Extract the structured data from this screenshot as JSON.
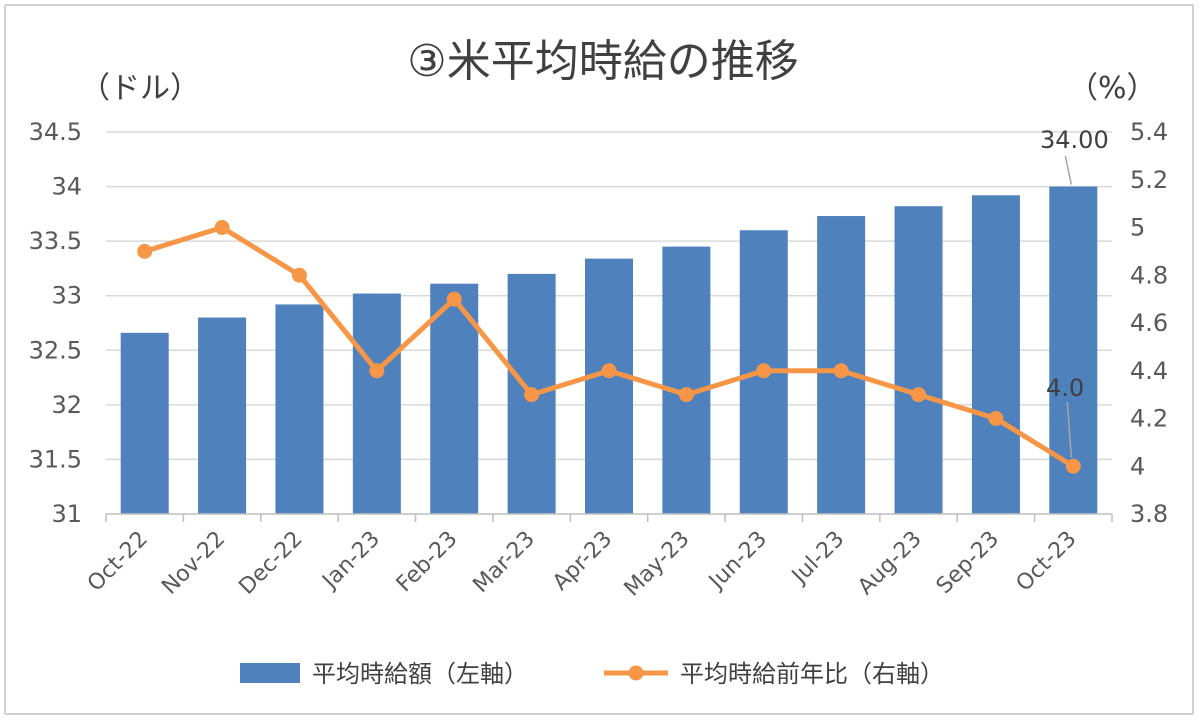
{
  "chart_data": {
    "type": "bar",
    "title": "③米平均時給の推移",
    "left_unit": "（ドル）",
    "right_unit": "（%）",
    "categories": [
      "Oct-22",
      "Nov-22",
      "Dec-22",
      "Jan-23",
      "Feb-23",
      "Mar-23",
      "Apr-23",
      "May-23",
      "Jun-23",
      "Jul-23",
      "Aug-23",
      "Sep-23",
      "Oct-23"
    ],
    "series": [
      {
        "name": "平均時給額（左軸）",
        "type": "bar",
        "axis": "left",
        "color": "#4f81bd",
        "values": [
          32.66,
          32.8,
          32.92,
          33.02,
          33.11,
          33.2,
          33.34,
          33.45,
          33.6,
          33.73,
          33.82,
          33.92,
          34.0
        ],
        "data_labels": {
          "12": "34.00"
        }
      },
      {
        "name": "平均時給前年比（右軸）",
        "type": "line",
        "axis": "right",
        "color": "#f79646",
        "values": [
          4.9,
          5.0,
          4.8,
          4.4,
          4.7,
          4.3,
          4.4,
          4.3,
          4.4,
          4.4,
          4.3,
          4.2,
          4.0
        ],
        "data_labels": {
          "12": "4.0"
        }
      }
    ],
    "left_axis": {
      "ylim": [
        31,
        34.5
      ],
      "ticks": [
        "31",
        "31.5",
        "32",
        "32.5",
        "33",
        "33.5",
        "34",
        "34.5"
      ]
    },
    "right_axis": {
      "ylim": [
        3.8,
        5.4
      ],
      "ticks": [
        "3.8",
        "4",
        "4.2",
        "4.4",
        "4.6",
        "4.8",
        "5",
        "5.2",
        "5.4"
      ]
    },
    "grid": true,
    "legend": "bottom"
  }
}
